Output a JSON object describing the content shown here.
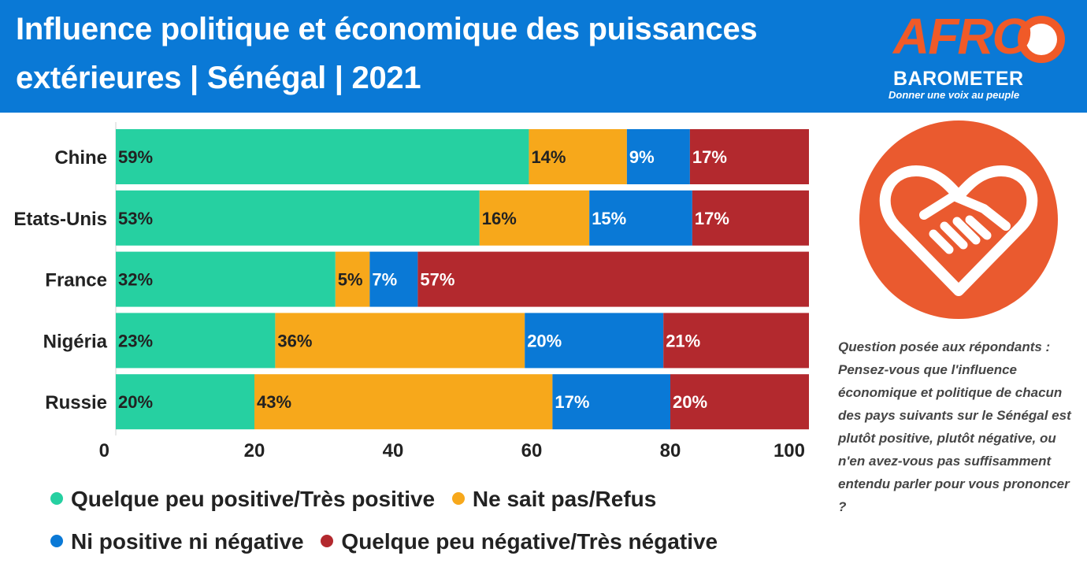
{
  "header": {
    "title": "Influence politique et économique des puissances extérieures | Sénégal | 2021"
  },
  "logo": {
    "main": "AFRO",
    "sub": "BAROMETER",
    "tagline": "Donner une voix au peuple"
  },
  "question": "Question posée aux répondants : Pensez-vous que l'influence économique et politique de chacun des pays suivants sur le Sénégal est plutôt positive, plutôt négative, ou n'en avez-vous pas suffisamment entendu parler pour vous prononcer ?",
  "colors": {
    "header": "#0a79d6",
    "positive": "#26d0a1",
    "dont_know": "#f7a81b",
    "neutral": "#0a79d6",
    "negative": "#b3292e",
    "icon": "#ea5a2f"
  },
  "chart_data": {
    "type": "bar",
    "orientation": "horizontal",
    "stacked": true,
    "categories": [
      "Chine",
      "Etats-Unis",
      "France",
      "Nigéria",
      "Russie"
    ],
    "series": [
      {
        "name": "Quelque peu positive/Très positive",
        "values": [
          59,
          53,
          32,
          23,
          20
        ],
        "color": "#26d0a1"
      },
      {
        "name": "Ne sait pas/Refus",
        "values": [
          14,
          16,
          5,
          36,
          43
        ],
        "color": "#f7a81b"
      },
      {
        "name": "Ni positive ni négative",
        "values": [
          9,
          15,
          7,
          20,
          17
        ],
        "color": "#0a79d6"
      },
      {
        "name": "Quelque peu négative/Très négative",
        "values": [
          17,
          17,
          57,
          21,
          20
        ],
        "color": "#b3292e"
      }
    ],
    "data_labels": [
      [
        "59%",
        "14%",
        "9%",
        "17%"
      ],
      [
        "53%",
        "16%",
        "15%",
        "17%"
      ],
      [
        "32%",
        "5%",
        "7%",
        "57%"
      ],
      [
        "23%",
        "36%",
        "20%",
        "21%"
      ],
      [
        "20%",
        "43%",
        "17%",
        "20%"
      ]
    ],
    "label_colors": [
      "#222222",
      "#222222",
      "#ffffff",
      "#ffffff"
    ],
    "xlim": [
      0,
      100
    ],
    "xticks": [
      0,
      20,
      40,
      60,
      80,
      100
    ],
    "xlabel": "",
    "ylabel": "",
    "grid": false,
    "legend_position": "bottom"
  }
}
